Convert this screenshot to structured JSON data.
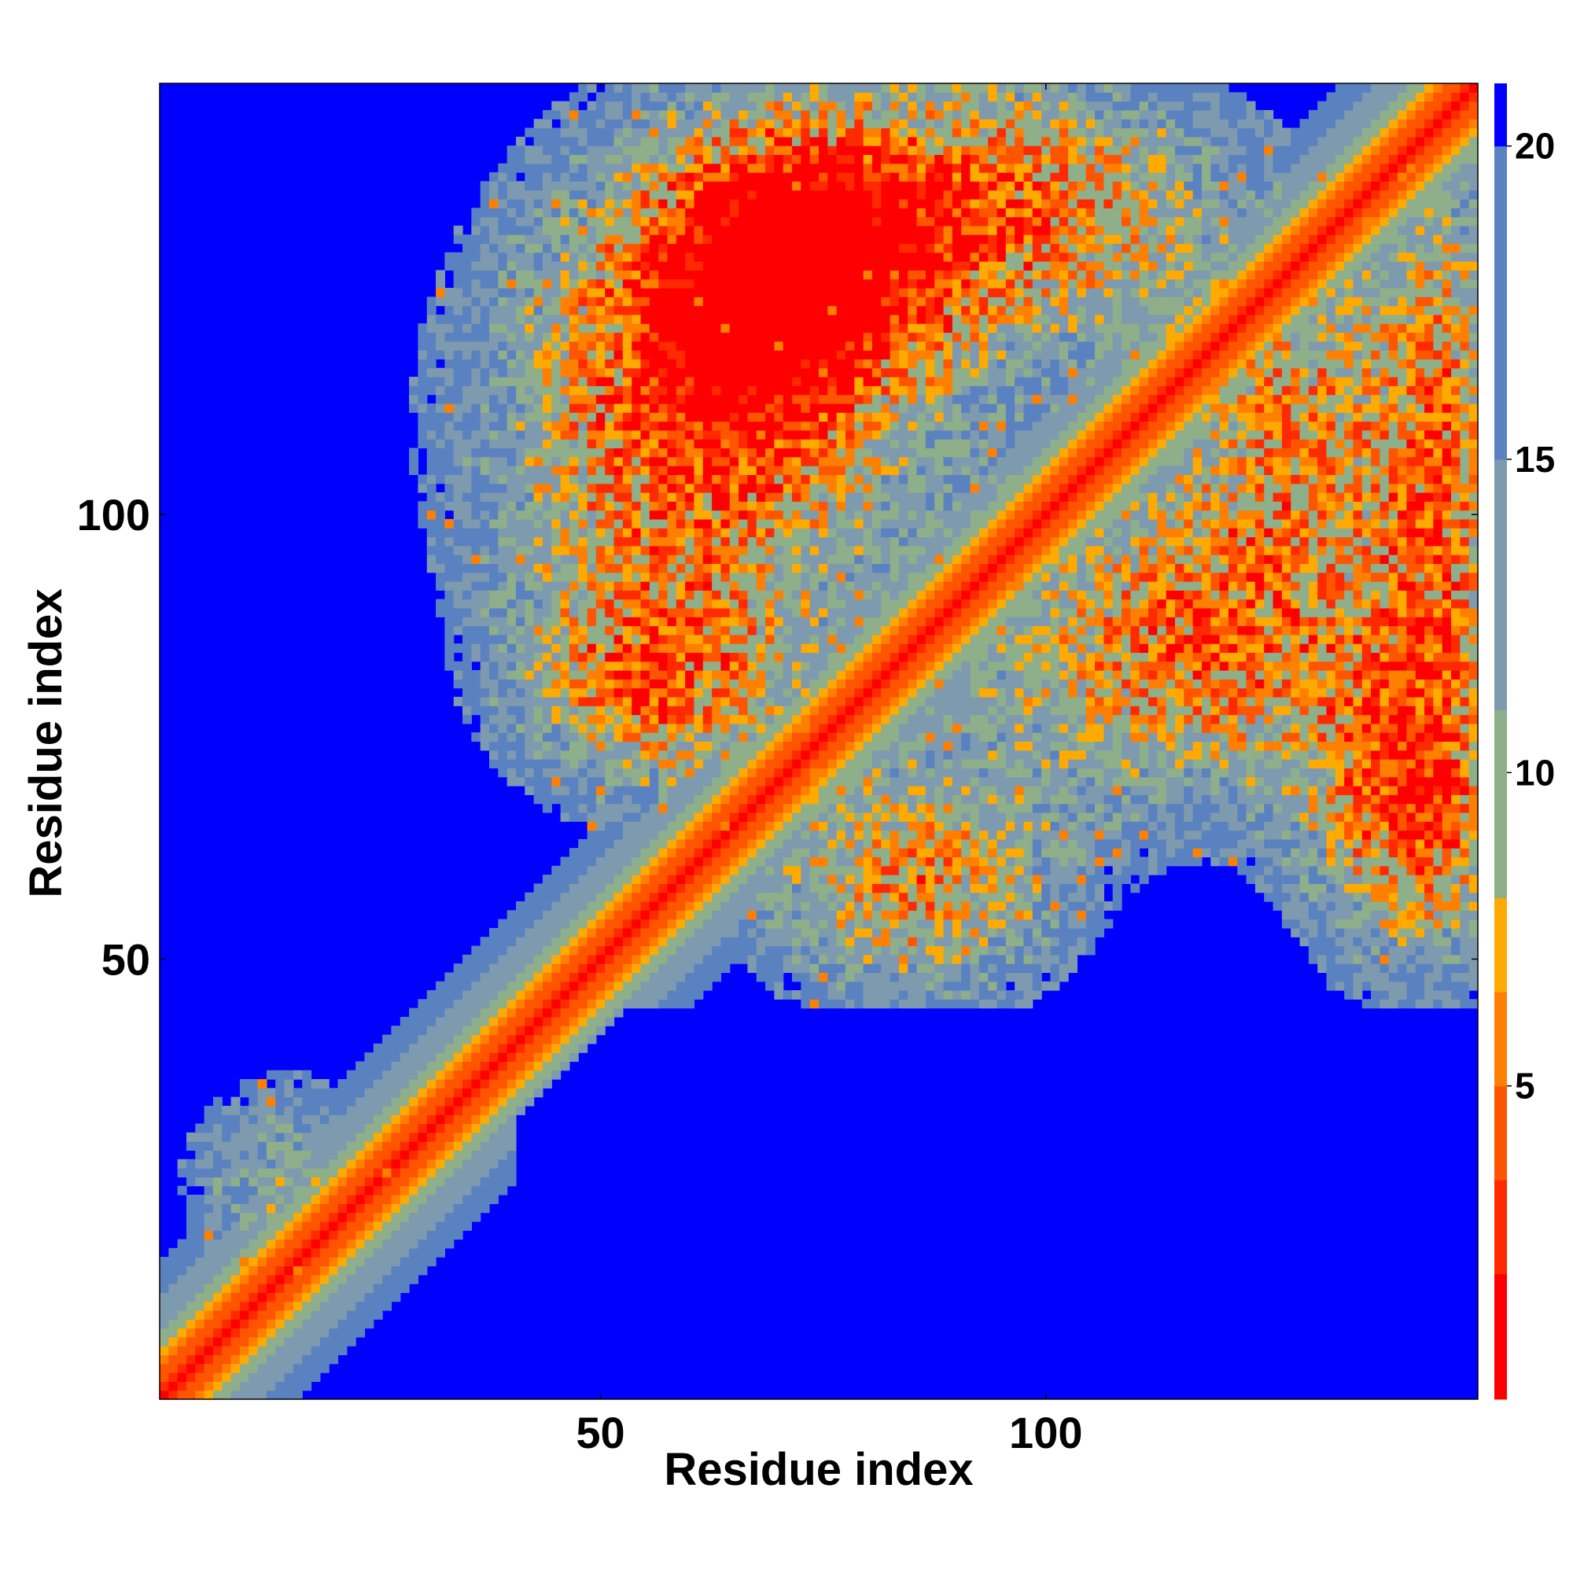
{
  "chart_data": {
    "type": "heatmap",
    "title": "",
    "xlabel": "Residue index",
    "ylabel": "Residue index",
    "xlim": [
      1,
      148
    ],
    "ylim": [
      1,
      148
    ],
    "x_ticks": [
      50,
      100
    ],
    "y_ticks": [
      50,
      100
    ],
    "colorbar": {
      "range": [
        0,
        21
      ],
      "ticks": [
        5,
        10,
        15,
        20
      ],
      "colors": [
        "#ff0000",
        "#ff2a00",
        "#ff5500",
        "#ff7f00",
        "#ffaa00",
        "#8fae8a",
        "#7e9aae",
        "#5b82c0",
        "#0000ff"
      ],
      "boundaries": [
        0,
        2,
        3.5,
        5,
        6.5,
        8,
        11,
        15,
        20,
        21
      ]
    },
    "grid": false,
    "description_of_values": "Pairwise residue distance map: ~0-2 on the main diagonal (red), rising to >20 (blue) far from contacts; off-diagonal contact regions around residues 45-148."
  }
}
